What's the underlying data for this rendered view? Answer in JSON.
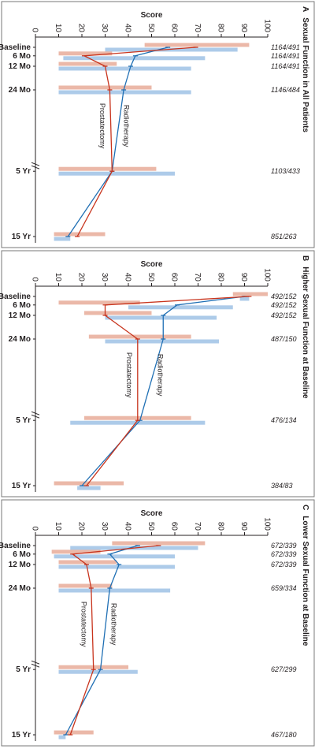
{
  "colors": {
    "radiotherapy_line": "#1f6fb4",
    "radiotherapy_band": "#a9c8e8",
    "prostatectomy_line": "#c8341d",
    "prostatectomy_band": "#eab4a3",
    "axis": "#231f20",
    "panel_border": "#777777"
  },
  "chart_data": [
    {
      "type": "line",
      "panel_letter": "A",
      "title": "Sexual Function in All Patients",
      "ylabel": "Score",
      "ylim": [
        0,
        100
      ],
      "yticks": [
        "0",
        "10",
        "20",
        "30",
        "40",
        "50",
        "60",
        "70",
        "80",
        "90",
        "100"
      ],
      "categories": [
        "Baseline",
        "6 Mo",
        "12 Mo",
        "24 Mo",
        "5 Yr",
        "15 Yr"
      ],
      "counts": [
        "1164/491",
        "1164/491",
        "1164/491",
        "1146/484",
        "1103/433",
        "851/263"
      ],
      "series": [
        {
          "name": "Radiotherapy",
          "values": [
            57,
            43,
            41,
            38,
            33,
            14
          ],
          "q1": [
            30,
            12,
            10,
            10,
            10,
            8
          ],
          "q3": [
            87,
            73,
            67,
            67,
            60,
            15
          ]
        },
        {
          "name": "Prostatectomy",
          "values": [
            69,
            21,
            30,
            32,
            33,
            18
          ],
          "q1": [
            47,
            10,
            10,
            10,
            10,
            8
          ],
          "q3": [
            92,
            33,
            35,
            50,
            52,
            30
          ]
        }
      ]
    },
    {
      "type": "line",
      "panel_letter": "B",
      "title": "Higher Sexual Function at Baseline",
      "ylabel": "Score",
      "ylim": [
        0,
        100
      ],
      "yticks": [
        "0",
        "10",
        "20",
        "30",
        "40",
        "50",
        "60",
        "70",
        "80",
        "90",
        "100"
      ],
      "categories": [
        "Baseline",
        "6 Mo",
        "12 Mo",
        "24 Mo",
        "5 Yr",
        "15 Yr"
      ],
      "counts": [
        "492/152",
        "492/152",
        "492/152",
        "487/150",
        "476/134",
        "384/83"
      ],
      "series": [
        {
          "name": "Radiotherapy",
          "values": [
            90,
            61,
            55,
            55,
            45,
            20
          ],
          "q1": [
            88,
            40,
            30,
            30,
            15,
            18
          ],
          "q3": [
            92,
            85,
            78,
            79,
            73,
            28
          ]
        },
        {
          "name": "Prostatectomy",
          "values": [
            92,
            30,
            30,
            44,
            44,
            22
          ],
          "q1": [
            85,
            10,
            21,
            23,
            21,
            8
          ],
          "q3": [
            100,
            45,
            50,
            67,
            67,
            38
          ]
        }
      ]
    },
    {
      "type": "line",
      "panel_letter": "C",
      "title": "Lower Sexual Function at Baseline",
      "ylabel": "Score",
      "ylim": [
        0,
        100
      ],
      "yticks": [
        "0",
        "10",
        "20",
        "30",
        "40",
        "50",
        "60",
        "70",
        "80",
        "90",
        "100"
      ],
      "categories": [
        "Baseline",
        "6 Mo",
        "12 Mo",
        "24 Mo",
        "5 Yr",
        "15 Yr"
      ],
      "counts": [
        "672/339",
        "672/339",
        "672/339",
        "659/334",
        "627/299",
        "467/180"
      ],
      "series": [
        {
          "name": "Radiotherapy",
          "values": [
            44,
            32,
            36,
            32,
            28,
            13
          ],
          "q1": [
            15,
            8,
            10,
            10,
            10,
            10
          ],
          "q3": [
            70,
            60,
            60,
            58,
            44,
            13
          ]
        },
        {
          "name": "Prostatectomy",
          "values": [
            53,
            16,
            22,
            24,
            25,
            15
          ],
          "q1": [
            33,
            7,
            10,
            10,
            10,
            8
          ],
          "q3": [
            73,
            28,
            35,
            33,
            40,
            25
          ]
        }
      ]
    }
  ]
}
